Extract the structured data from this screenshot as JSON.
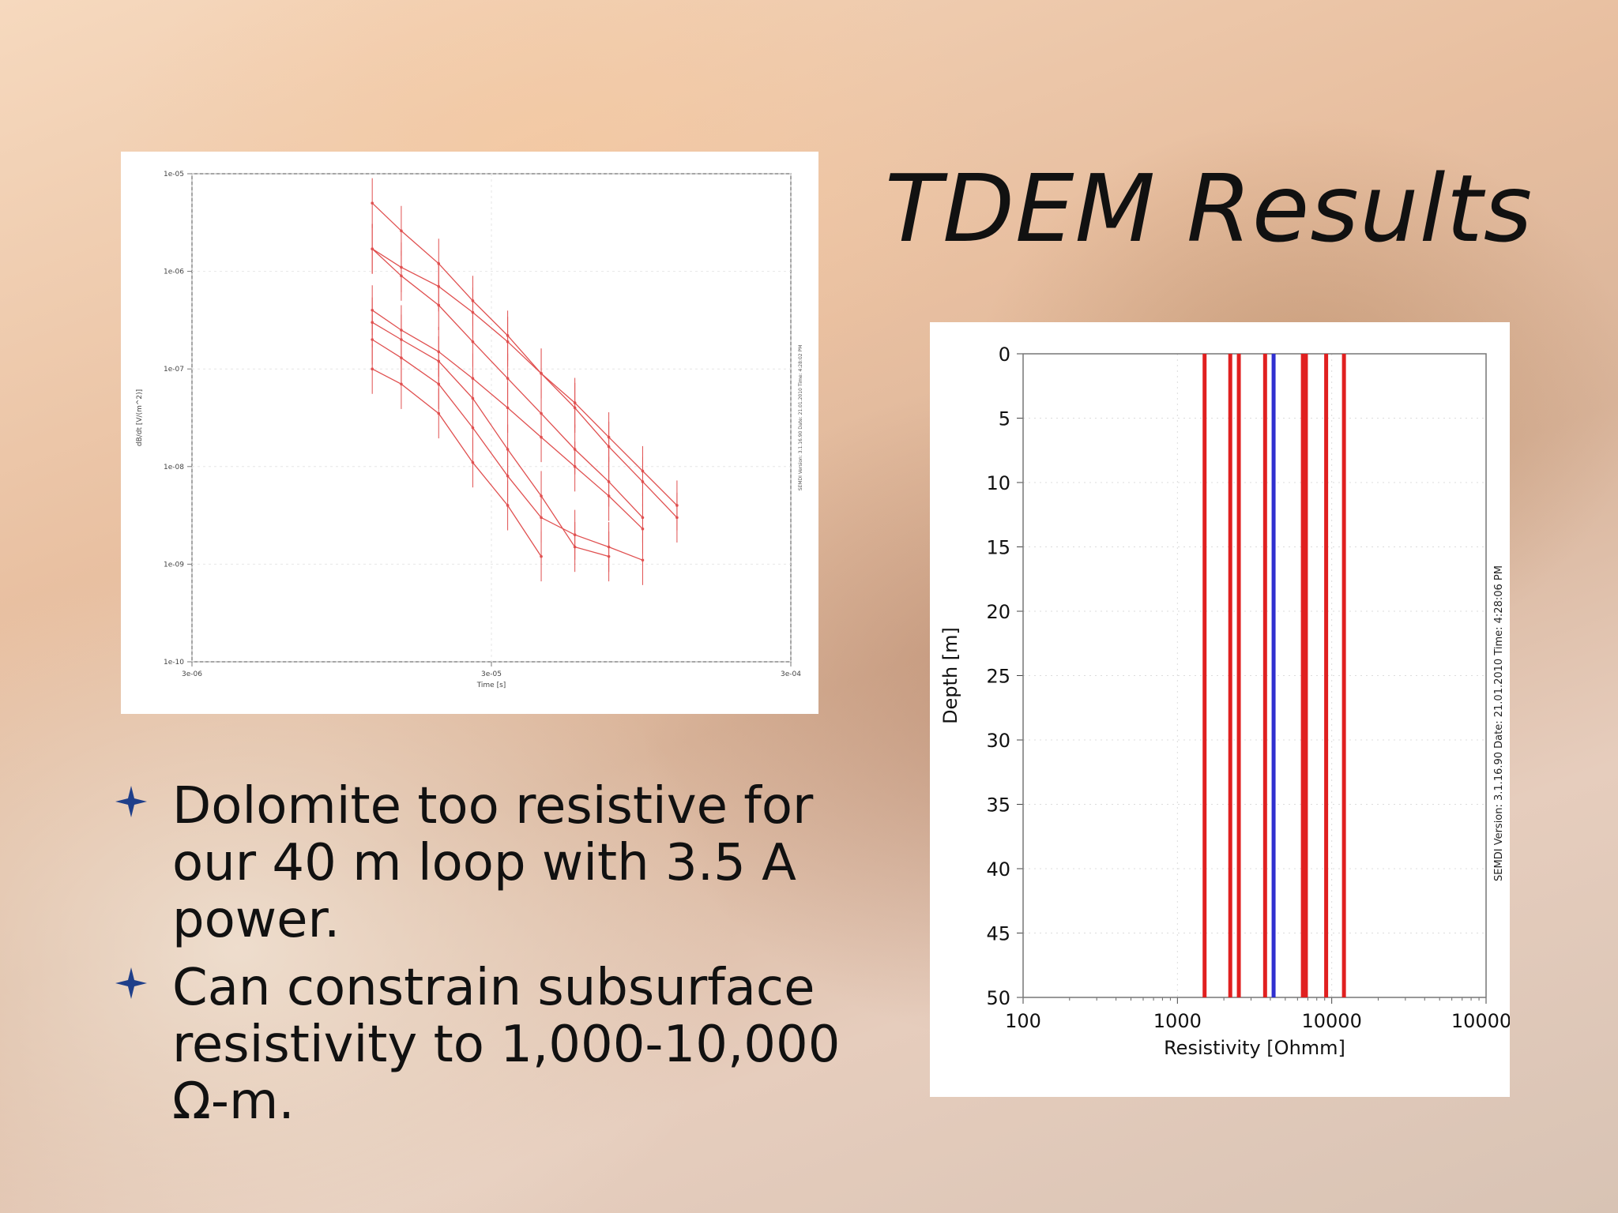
{
  "slide": {
    "title": "TDEM Results",
    "bullets": [
      "Dolomite too resistive for our 40 m loop with 3.5 A power.",
      "Can constrain subsurface resistivity to 1,000-10,000 Ω-m."
    ],
    "bullet_color": "#1f3f8a"
  },
  "chart_data": [
    {
      "type": "line",
      "xlabel": "Time [s]",
      "ylabel": "dB/dt [V/(m^2)]",
      "x_scale": "log",
      "y_scale": "log",
      "xlim": [
        3e-06,
        0.0003
      ],
      "ylim": [
        1e-10,
        1e-05
      ],
      "x_ticks": [
        "3e-06",
        "3e-05",
        "3e-04"
      ],
      "y_ticks": [
        "1e-05",
        "1e-06",
        "1e-07",
        "1e-08",
        "1e-09",
        "1e-10"
      ],
      "watermark": "SEMDI Version: 3.1.16.90 Date: 21.01.2010 Time: 4:28:02 PM",
      "series_color": "#e05050",
      "series": [
        {
          "x": [
            1.2e-05,
            1.5e-05,
            2e-05,
            2.6e-05,
            3.4e-05,
            4.4e-05,
            5.7e-05,
            7.4e-05,
            9.6e-05,
            0.000125
          ],
          "y": [
            5e-06,
            2.6e-06,
            1.2e-06,
            5e-07,
            2.2e-07,
            9e-08,
            4e-08,
            1.6e-08,
            7e-09,
            3e-09
          ]
        },
        {
          "x": [
            1.2e-05,
            1.5e-05,
            2e-05,
            2.6e-05,
            3.4e-05,
            4.4e-05,
            5.7e-05,
            7.4e-05,
            9.6e-05,
            0.000125
          ],
          "y": [
            1.7e-06,
            1.1e-06,
            7e-07,
            3.8e-07,
            1.9e-07,
            9e-08,
            4.5e-08,
            2e-08,
            9e-09,
            4e-09
          ]
        },
        {
          "x": [
            1.2e-05,
            1.5e-05,
            2e-05,
            2.6e-05,
            3.4e-05,
            4.4e-05,
            5.7e-05,
            7.4e-05,
            9.6e-05
          ],
          "y": [
            1.7e-06,
            9e-07,
            4.5e-07,
            1.9e-07,
            8e-08,
            3.5e-08,
            1.5e-08,
            7e-09,
            3e-09
          ]
        },
        {
          "x": [
            1.2e-05,
            1.5e-05,
            2e-05,
            2.6e-05,
            3.4e-05,
            4.4e-05,
            5.7e-05,
            7.4e-05,
            9.6e-05
          ],
          "y": [
            4e-07,
            2.5e-07,
            1.5e-07,
            8e-08,
            4e-08,
            2e-08,
            1e-08,
            5e-09,
            2.3e-09
          ]
        },
        {
          "x": [
            1.2e-05,
            1.5e-05,
            2e-05,
            2.6e-05,
            3.4e-05,
            4.4e-05,
            5.7e-05,
            7.4e-05
          ],
          "y": [
            3e-07,
            2e-07,
            1.2e-07,
            5e-08,
            1.5e-08,
            5e-09,
            1.5e-09,
            1.2e-09
          ]
        },
        {
          "x": [
            1.2e-05,
            1.5e-05,
            2e-05,
            2.6e-05,
            3.4e-05,
            4.4e-05,
            5.7e-05,
            7.4e-05,
            9.6e-05
          ],
          "y": [
            2e-07,
            1.3e-07,
            7e-08,
            2.5e-08,
            8e-09,
            3e-09,
            2e-09,
            1.5e-09,
            1.1e-09
          ]
        },
        {
          "x": [
            1.2e-05,
            1.5e-05,
            2e-05,
            2.6e-05,
            3.4e-05,
            4.4e-05
          ],
          "y": [
            1e-07,
            7e-08,
            3.5e-08,
            1.1e-08,
            4e-09,
            1.2e-09
          ]
        }
      ]
    },
    {
      "type": "line",
      "xlabel": "Resistivity [Ohmm]",
      "ylabel": "Depth [m]",
      "x_scale": "log",
      "xlim": [
        100,
        100000
      ],
      "ylim": [
        0,
        50
      ],
      "x_ticks": [
        "100",
        "1000",
        "10000",
        "10000"
      ],
      "y_ticks": [
        "0",
        "5",
        "10",
        "15",
        "20",
        "25",
        "30",
        "35",
        "40",
        "45",
        "50"
      ],
      "watermark": "SEMDI Version: 3.1.16.90 Date: 21.01.2010 Time: 4:28:06 PM",
      "model_color": "#e02020",
      "best_color": "#3030d0",
      "series": [
        {
          "resistivity": 1500,
          "depth": [
            0,
            50
          ]
        },
        {
          "resistivity": 2200,
          "depth": [
            0,
            50
          ]
        },
        {
          "resistivity": 2500,
          "depth": [
            0,
            50
          ]
        },
        {
          "resistivity": 3700,
          "depth": [
            0,
            50
          ]
        },
        {
          "resistivity": 6500,
          "depth": [
            0,
            50
          ]
        },
        {
          "resistivity": 6800,
          "depth": [
            0,
            50
          ]
        },
        {
          "resistivity": 9200,
          "depth": [
            0,
            50
          ]
        },
        {
          "resistivity": 12000,
          "depth": [
            0,
            50
          ]
        },
        {
          "resistivity": 4200,
          "depth": [
            0,
            50
          ],
          "best": true
        }
      ]
    }
  ]
}
